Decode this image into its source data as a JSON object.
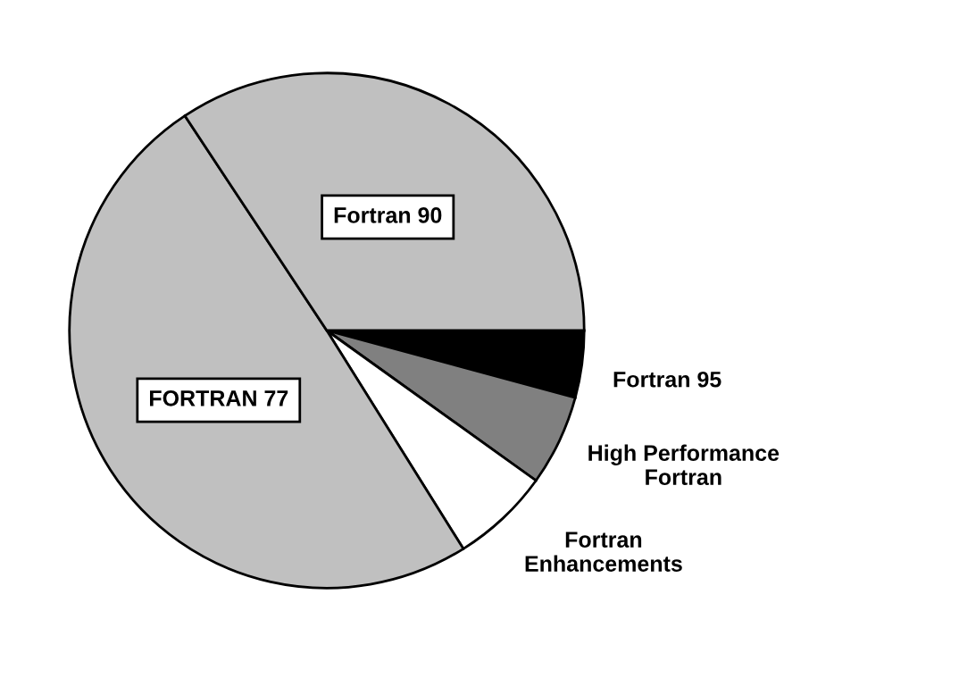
{
  "chart_data": {
    "type": "pie",
    "categories": [
      "Fortran 95",
      "High Performance\nFortran",
      "Fortran\nEnhancements",
      "FORTRAN 77",
      "Fortran 90"
    ],
    "values": [
      4.2,
      5.7,
      6.2,
      49.6,
      34.3
    ],
    "colors": [
      "#000000",
      "#808080",
      "#ffffff",
      "#c0c0c0",
      "#c0c0c0"
    ],
    "legend": false
  }
}
